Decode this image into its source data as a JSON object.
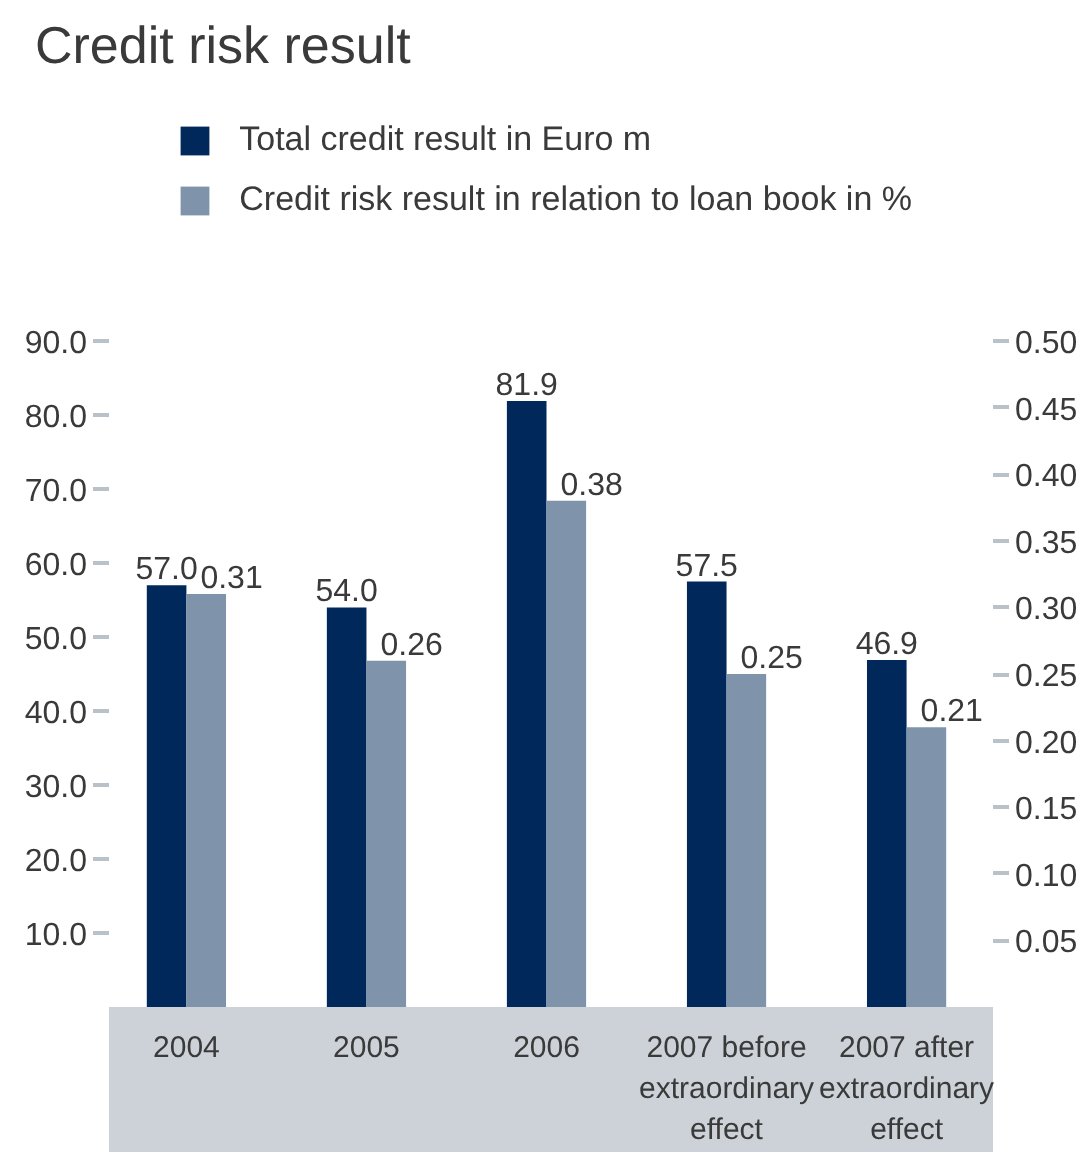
{
  "chart_data": {
    "type": "bar",
    "title": "Credit risk result",
    "categories": [
      "2004",
      "2005",
      "2006",
      "2007 before extraordinary effect",
      "2007 after extraordinary effect"
    ],
    "series": [
      {
        "name": "Total credit result in Euro m",
        "color": "#00285a",
        "values": [
          57.0,
          54.0,
          81.9,
          57.5,
          46.9
        ],
        "value_labels": [
          "57.0",
          "54.0",
          "81.9",
          "57.5",
          "46.9"
        ]
      },
      {
        "name": "Credit risk result in relation to loan book in %",
        "color": "#7f93ab",
        "values": [
          0.31,
          0.26,
          0.38,
          0.25,
          0.21
        ],
        "value_labels": [
          "0.31",
          "0.26",
          "0.38",
          "0.25",
          "0.21"
        ],
        "axis": "y2"
      }
    ],
    "ylim": [
      0,
      90
    ],
    "yticks": [
      {
        "value": 10,
        "label": "10.0"
      },
      {
        "value": 20,
        "label": "20.0"
      },
      {
        "value": 30,
        "label": "30.0"
      },
      {
        "value": 40,
        "label": "40.0"
      },
      {
        "value": 50,
        "label": "50.0"
      },
      {
        "value": 60,
        "label": "60.0"
      },
      {
        "value": 70,
        "label": "70.0"
      },
      {
        "value": 80,
        "label": "80.0"
      },
      {
        "value": 90,
        "label": "90.0"
      }
    ],
    "y2lim": [
      0,
      0.5
    ],
    "y2ticks": [
      {
        "value": 0.05,
        "label": "0.05"
      },
      {
        "value": 0.1,
        "label": "0.10"
      },
      {
        "value": 0.15,
        "label": "0.15"
      },
      {
        "value": 0.2,
        "label": "0.20"
      },
      {
        "value": 0.25,
        "label": "0.25"
      },
      {
        "value": 0.3,
        "label": "0.30"
      },
      {
        "value": 0.35,
        "label": "0.35"
      },
      {
        "value": 0.4,
        "label": "0.40"
      },
      {
        "value": 0.45,
        "label": "0.45"
      },
      {
        "value": 0.5,
        "label": "0.50"
      }
    ],
    "legend": "top"
  }
}
